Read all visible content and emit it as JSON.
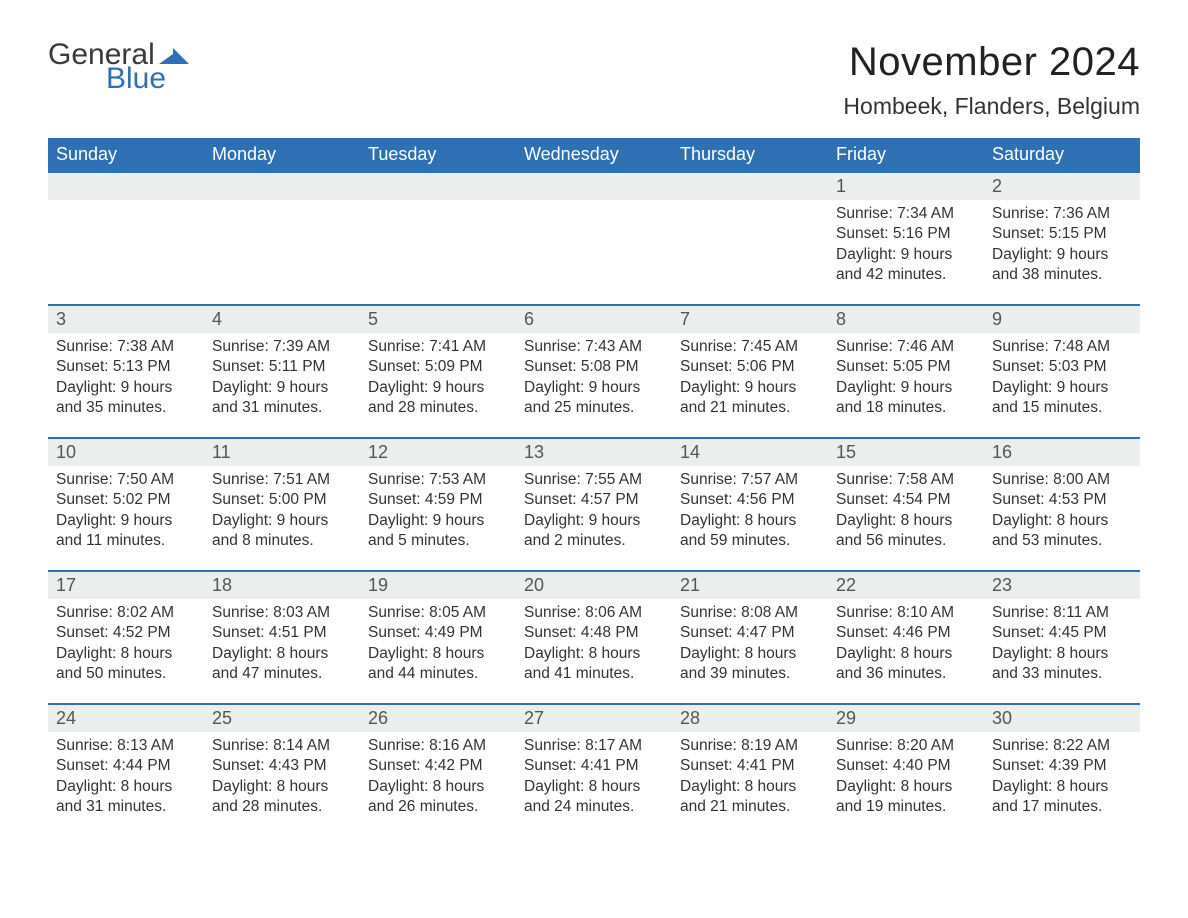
{
  "brand": {
    "word1": "General",
    "word2": "Blue",
    "word1_color": "#3a3a3a",
    "word2_color": "#2f6fb3",
    "mark_color": "#2f6fb3"
  },
  "header": {
    "month_title": "November 2024",
    "location": "Hombeek, Flanders, Belgium"
  },
  "styling": {
    "header_bg": "#2f6fb3",
    "header_text": "#ffffff",
    "daynum_bg": "#eceded",
    "row_divider_color": "#2f6fb3",
    "body_text_color": "#333333",
    "page_bg": "#ffffff",
    "weekday_fontsize": 18,
    "daynum_fontsize": 18,
    "body_fontsize": 15.5,
    "title_fontsize": 40,
    "location_fontsize": 23
  },
  "weekdays": [
    "Sunday",
    "Monday",
    "Tuesday",
    "Wednesday",
    "Thursday",
    "Friday",
    "Saturday"
  ],
  "weeks": [
    {
      "first": true,
      "days": [
        {
          "blank": true
        },
        {
          "blank": true
        },
        {
          "blank": true
        },
        {
          "blank": true
        },
        {
          "blank": true
        },
        {
          "num": "1",
          "sunrise": "Sunrise: 7:34 AM",
          "sunset": "Sunset: 5:16 PM",
          "dl1": "Daylight: 9 hours",
          "dl2": "and 42 minutes."
        },
        {
          "num": "2",
          "sunrise": "Sunrise: 7:36 AM",
          "sunset": "Sunset: 5:15 PM",
          "dl1": "Daylight: 9 hours",
          "dl2": "and 38 minutes."
        }
      ]
    },
    {
      "days": [
        {
          "num": "3",
          "sunrise": "Sunrise: 7:38 AM",
          "sunset": "Sunset: 5:13 PM",
          "dl1": "Daylight: 9 hours",
          "dl2": "and 35 minutes."
        },
        {
          "num": "4",
          "sunrise": "Sunrise: 7:39 AM",
          "sunset": "Sunset: 5:11 PM",
          "dl1": "Daylight: 9 hours",
          "dl2": "and 31 minutes."
        },
        {
          "num": "5",
          "sunrise": "Sunrise: 7:41 AM",
          "sunset": "Sunset: 5:09 PM",
          "dl1": "Daylight: 9 hours",
          "dl2": "and 28 minutes."
        },
        {
          "num": "6",
          "sunrise": "Sunrise: 7:43 AM",
          "sunset": "Sunset: 5:08 PM",
          "dl1": "Daylight: 9 hours",
          "dl2": "and 25 minutes."
        },
        {
          "num": "7",
          "sunrise": "Sunrise: 7:45 AM",
          "sunset": "Sunset: 5:06 PM",
          "dl1": "Daylight: 9 hours",
          "dl2": "and 21 minutes."
        },
        {
          "num": "8",
          "sunrise": "Sunrise: 7:46 AM",
          "sunset": "Sunset: 5:05 PM",
          "dl1": "Daylight: 9 hours",
          "dl2": "and 18 minutes."
        },
        {
          "num": "9",
          "sunrise": "Sunrise: 7:48 AM",
          "sunset": "Sunset: 5:03 PM",
          "dl1": "Daylight: 9 hours",
          "dl2": "and 15 minutes."
        }
      ]
    },
    {
      "days": [
        {
          "num": "10",
          "sunrise": "Sunrise: 7:50 AM",
          "sunset": "Sunset: 5:02 PM",
          "dl1": "Daylight: 9 hours",
          "dl2": "and 11 minutes."
        },
        {
          "num": "11",
          "sunrise": "Sunrise: 7:51 AM",
          "sunset": "Sunset: 5:00 PM",
          "dl1": "Daylight: 9 hours",
          "dl2": "and 8 minutes."
        },
        {
          "num": "12",
          "sunrise": "Sunrise: 7:53 AM",
          "sunset": "Sunset: 4:59 PM",
          "dl1": "Daylight: 9 hours",
          "dl2": "and 5 minutes."
        },
        {
          "num": "13",
          "sunrise": "Sunrise: 7:55 AM",
          "sunset": "Sunset: 4:57 PM",
          "dl1": "Daylight: 9 hours",
          "dl2": "and 2 minutes."
        },
        {
          "num": "14",
          "sunrise": "Sunrise: 7:57 AM",
          "sunset": "Sunset: 4:56 PM",
          "dl1": "Daylight: 8 hours",
          "dl2": "and 59 minutes."
        },
        {
          "num": "15",
          "sunrise": "Sunrise: 7:58 AM",
          "sunset": "Sunset: 4:54 PM",
          "dl1": "Daylight: 8 hours",
          "dl2": "and 56 minutes."
        },
        {
          "num": "16",
          "sunrise": "Sunrise: 8:00 AM",
          "sunset": "Sunset: 4:53 PM",
          "dl1": "Daylight: 8 hours",
          "dl2": "and 53 minutes."
        }
      ]
    },
    {
      "days": [
        {
          "num": "17",
          "sunrise": "Sunrise: 8:02 AM",
          "sunset": "Sunset: 4:52 PM",
          "dl1": "Daylight: 8 hours",
          "dl2": "and 50 minutes."
        },
        {
          "num": "18",
          "sunrise": "Sunrise: 8:03 AM",
          "sunset": "Sunset: 4:51 PM",
          "dl1": "Daylight: 8 hours",
          "dl2": "and 47 minutes."
        },
        {
          "num": "19",
          "sunrise": "Sunrise: 8:05 AM",
          "sunset": "Sunset: 4:49 PM",
          "dl1": "Daylight: 8 hours",
          "dl2": "and 44 minutes."
        },
        {
          "num": "20",
          "sunrise": "Sunrise: 8:06 AM",
          "sunset": "Sunset: 4:48 PM",
          "dl1": "Daylight: 8 hours",
          "dl2": "and 41 minutes."
        },
        {
          "num": "21",
          "sunrise": "Sunrise: 8:08 AM",
          "sunset": "Sunset: 4:47 PM",
          "dl1": "Daylight: 8 hours",
          "dl2": "and 39 minutes."
        },
        {
          "num": "22",
          "sunrise": "Sunrise: 8:10 AM",
          "sunset": "Sunset: 4:46 PM",
          "dl1": "Daylight: 8 hours",
          "dl2": "and 36 minutes."
        },
        {
          "num": "23",
          "sunrise": "Sunrise: 8:11 AM",
          "sunset": "Sunset: 4:45 PM",
          "dl1": "Daylight: 8 hours",
          "dl2": "and 33 minutes."
        }
      ]
    },
    {
      "days": [
        {
          "num": "24",
          "sunrise": "Sunrise: 8:13 AM",
          "sunset": "Sunset: 4:44 PM",
          "dl1": "Daylight: 8 hours",
          "dl2": "and 31 minutes."
        },
        {
          "num": "25",
          "sunrise": "Sunrise: 8:14 AM",
          "sunset": "Sunset: 4:43 PM",
          "dl1": "Daylight: 8 hours",
          "dl2": "and 28 minutes."
        },
        {
          "num": "26",
          "sunrise": "Sunrise: 8:16 AM",
          "sunset": "Sunset: 4:42 PM",
          "dl1": "Daylight: 8 hours",
          "dl2": "and 26 minutes."
        },
        {
          "num": "27",
          "sunrise": "Sunrise: 8:17 AM",
          "sunset": "Sunset: 4:41 PM",
          "dl1": "Daylight: 8 hours",
          "dl2": "and 24 minutes."
        },
        {
          "num": "28",
          "sunrise": "Sunrise: 8:19 AM",
          "sunset": "Sunset: 4:41 PM",
          "dl1": "Daylight: 8 hours",
          "dl2": "and 21 minutes."
        },
        {
          "num": "29",
          "sunrise": "Sunrise: 8:20 AM",
          "sunset": "Sunset: 4:40 PM",
          "dl1": "Daylight: 8 hours",
          "dl2": "and 19 minutes."
        },
        {
          "num": "30",
          "sunrise": "Sunrise: 8:22 AM",
          "sunset": "Sunset: 4:39 PM",
          "dl1": "Daylight: 8 hours",
          "dl2": "and 17 minutes."
        }
      ]
    }
  ]
}
